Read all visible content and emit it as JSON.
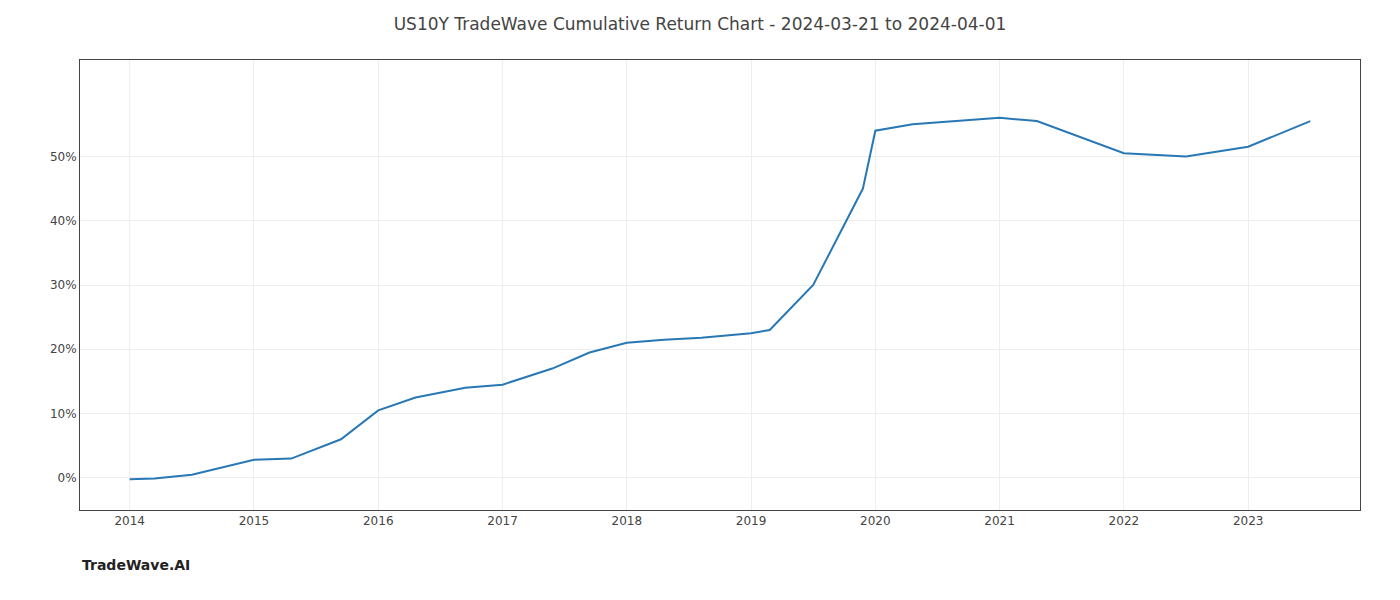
{
  "chart_data": {
    "type": "line",
    "title": "US10Y TradeWave Cumulative Return Chart - 2024-03-21 to 2024-04-01",
    "annotations": [
      "TradeWave.AI"
    ],
    "x": [
      2014.0,
      2014.2,
      2014.5,
      2015.0,
      2015.3,
      2015.7,
      2016.0,
      2016.3,
      2016.7,
      2017.0,
      2017.4,
      2017.7,
      2018.0,
      2018.3,
      2018.6,
      2019.0,
      2019.15,
      2019.5,
      2019.9,
      2020.0,
      2020.3,
      2021.0,
      2021.3,
      2022.0,
      2022.5,
      2023.0,
      2023.5
    ],
    "values": [
      -0.2,
      -0.1,
      0.5,
      2.8,
      3.0,
      6.0,
      10.5,
      12.5,
      14.0,
      14.5,
      17.0,
      19.5,
      21.0,
      21.5,
      21.8,
      22.5,
      23.0,
      30.0,
      45.0,
      54.0,
      55.0,
      56.0,
      55.5,
      50.5,
      50.0,
      51.5,
      55.5
    ],
    "color": "#2878b5",
    "xlim": [
      2013.6,
      2023.9
    ],
    "xticks": [
      2014,
      2015,
      2016,
      2017,
      2018,
      2019,
      2020,
      2021,
      2022,
      2023
    ],
    "ylim": [
      -5,
      65
    ],
    "yticks": [
      {
        "value": 0,
        "label": "0%"
      },
      {
        "value": 10,
        "label": "10%"
      },
      {
        "value": 20,
        "label": "20%"
      },
      {
        "value": 30,
        "label": "30%"
      },
      {
        "value": 40,
        "label": "40%"
      },
      {
        "value": 50,
        "label": "50%"
      }
    ],
    "grid": true
  }
}
